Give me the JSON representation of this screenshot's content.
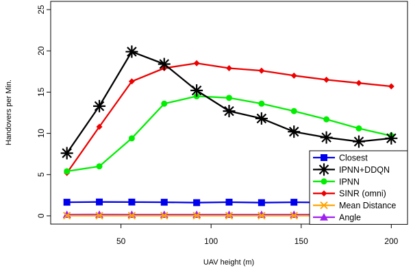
{
  "chart_data": {
    "type": "line",
    "title": "",
    "xlabel": "UAV height (m)",
    "ylabel": "Handovers per Min.",
    "xlim": [
      11,
      209
    ],
    "ylim": [
      -1,
      26
    ],
    "xticks": [
      50,
      100,
      150,
      200
    ],
    "yticks": [
      0,
      5,
      10,
      15,
      20,
      25
    ],
    "legend_position": "bottom-right",
    "x": [
      20,
      38,
      56,
      74,
      92,
      110,
      128,
      146,
      164,
      182,
      200
    ],
    "series": [
      {
        "name": "Closest",
        "color": "#0000ee",
        "marker": "square",
        "values": [
          1.65,
          1.68,
          1.67,
          1.65,
          1.6,
          1.66,
          1.6,
          1.65,
          1.62,
          1.6,
          1.6
        ]
      },
      {
        "name": "IPNN+DDQN",
        "color": "#000000",
        "marker": "star",
        "values": [
          7.6,
          13.3,
          19.9,
          18.4,
          15.2,
          12.7,
          11.8,
          10.2,
          9.5,
          9.0,
          9.4
        ]
      },
      {
        "name": "IPNN",
        "color": "#00ee00",
        "marker": "circle",
        "values": [
          5.4,
          6.0,
          9.4,
          13.6,
          14.5,
          14.3,
          13.6,
          12.7,
          11.7,
          10.6,
          9.7
        ]
      },
      {
        "name": "SINR (omni)",
        "color": "#ee0000",
        "marker": "diamond",
        "values": [
          5.2,
          10.8,
          16.3,
          17.9,
          18.5,
          17.9,
          17.6,
          17.0,
          16.5,
          16.1,
          15.7
        ]
      },
      {
        "name": "Mean Distance",
        "color": "#ffa500",
        "marker": "x",
        "values": [
          0.02,
          0.02,
          0.02,
          0.02,
          0.02,
          0.02,
          0.02,
          0.02,
          0.02,
          0.02,
          0.02
        ]
      },
      {
        "name": "Angle",
        "color": "#a020f0",
        "marker": "triangle",
        "values": [
          0.15,
          0.16,
          0.15,
          0.15,
          0.15,
          0.15,
          0.15,
          0.15,
          0.15,
          0.15,
          0.15
        ]
      }
    ]
  }
}
